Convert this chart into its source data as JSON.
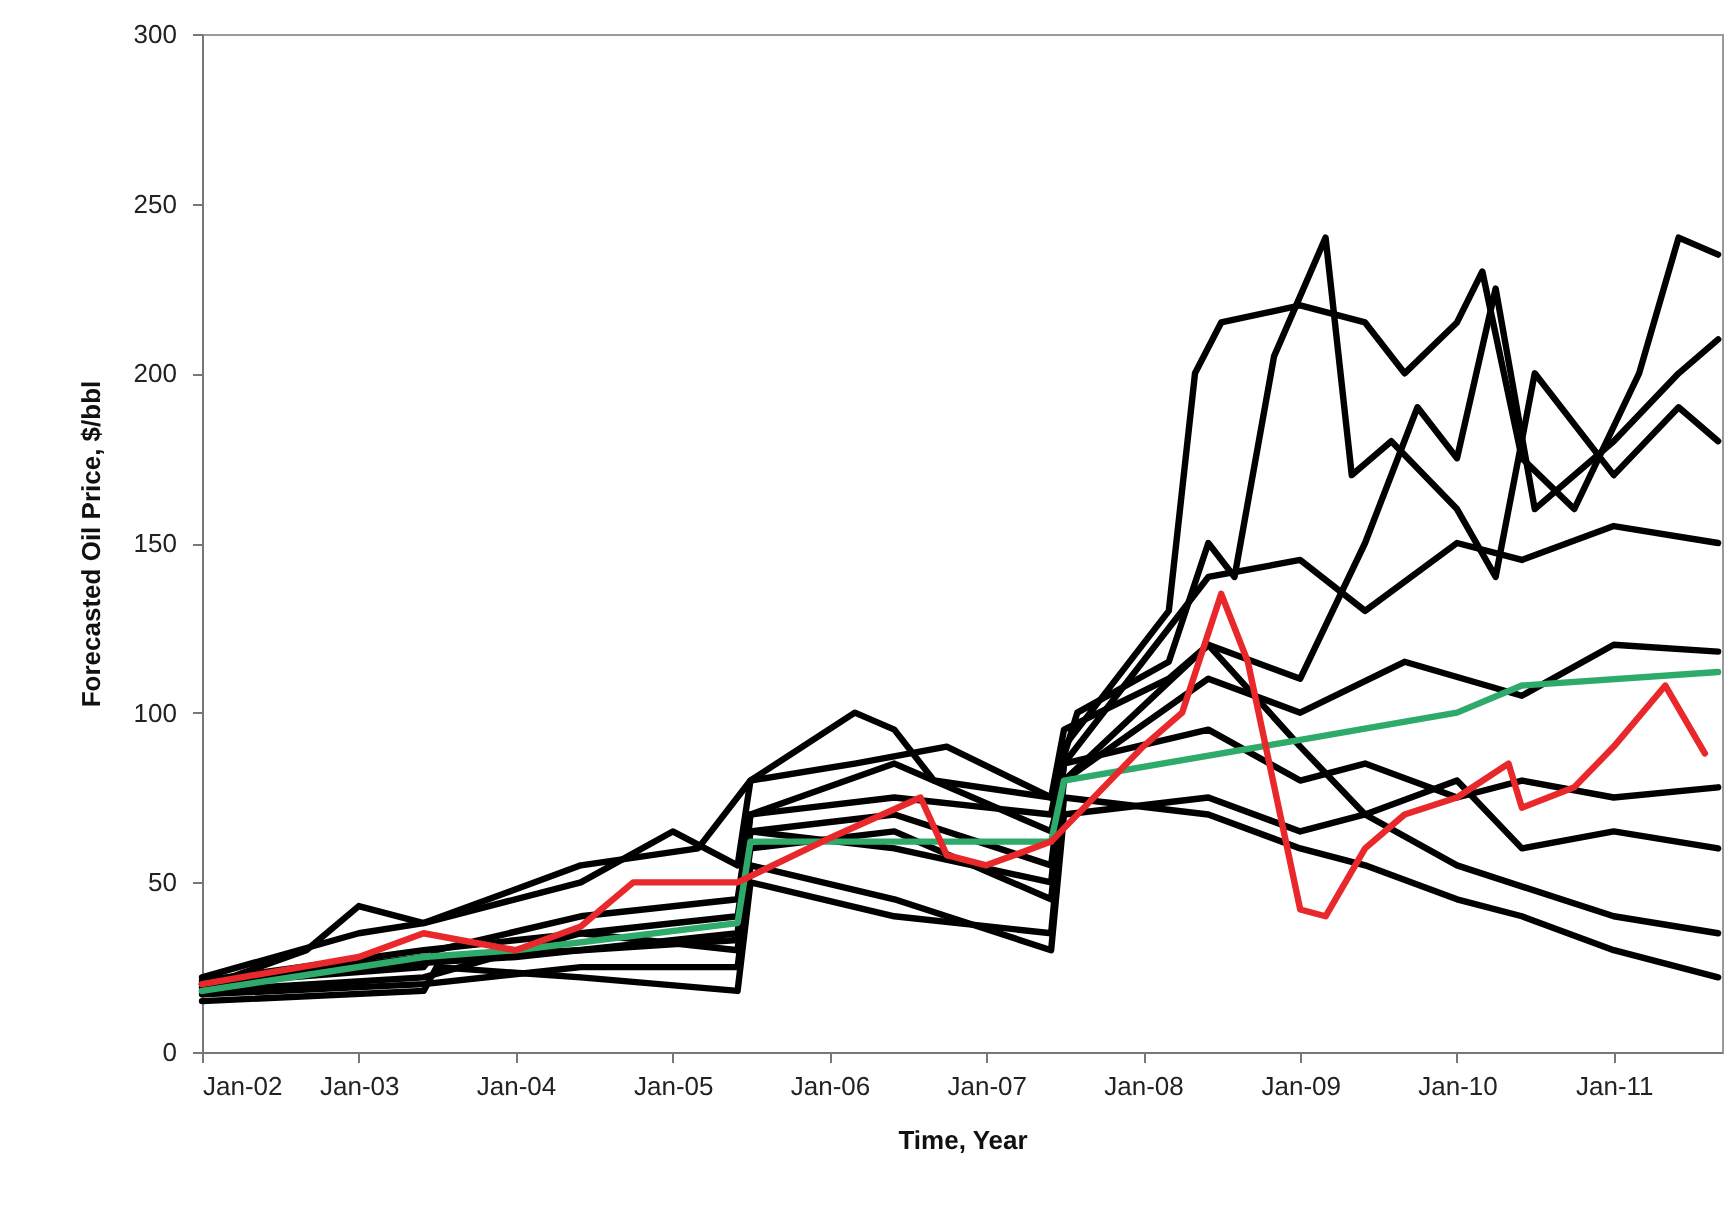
{
  "chart_data": {
    "type": "line",
    "xlabel": "Time, Year",
    "ylabel": "Forecasted Oil Price, $/bbl",
    "xlim": [
      "2002-01-01",
      "2011-09-10"
    ],
    "xticks": [
      {
        "value": "2002-01",
        "label": "Jan-02"
      },
      {
        "value": "2003-01",
        "label": "Jan-03"
      },
      {
        "value": "2004-01",
        "label": "Jan-04"
      },
      {
        "value": "2005-01",
        "label": "Jan-05"
      },
      {
        "value": "2006-01",
        "label": "Jan-06"
      },
      {
        "value": "2007-01",
        "label": "Jan-07"
      },
      {
        "value": "2008-01",
        "label": "Jan-08"
      },
      {
        "value": "2009-01",
        "label": "Jan-09"
      },
      {
        "value": "2010-01",
        "label": "Jan-10"
      },
      {
        "value": "2011-01",
        "label": "Jan-11"
      }
    ],
    "ylim": [
      0,
      300
    ],
    "yticks": [
      0,
      50,
      100,
      150,
      200,
      250,
      300
    ],
    "series": [
      {
        "color": "#000000",
        "x": [
          "2002-01",
          "2003-06",
          "2003-07",
          "2004-06",
          "2005-06",
          "2005-07",
          "2006-06",
          "2007-06",
          "2007-07",
          "2008-03",
          "2008-05",
          "2008-07",
          "2009-01",
          "2009-06",
          "2009-09",
          "2010-01",
          "2010-03",
          "2010-06",
          "2010-10",
          "2011-03",
          "2011-06",
          "2011-09"
        ],
        "values": [
          20,
          25,
          30,
          40,
          45,
          70,
          75,
          70,
          90,
          130,
          200,
          215,
          220,
          215,
          200,
          215,
          230,
          175,
          160,
          200,
          240,
          235
        ]
      },
      {
        "color": "#000000",
        "x": [
          "2002-01",
          "2003-01",
          "2003-06",
          "2004-06",
          "2005-03",
          "2005-07",
          "2006-03",
          "2006-10",
          "2007-06",
          "2007-08",
          "2008-03",
          "2008-06",
          "2008-08",
          "2008-11",
          "2009-03",
          "2009-05",
          "2009-08",
          "2010-01",
          "2010-04",
          "2010-07",
          "2011-01",
          "2011-06",
          "2011-09"
        ],
        "values": [
          22,
          35,
          38,
          55,
          60,
          80,
          85,
          90,
          75,
          100,
          115,
          150,
          140,
          205,
          240,
          170,
          180,
          160,
          140,
          200,
          170,
          190,
          180
        ]
      },
      {
        "color": "#000000",
        "x": [
          "2002-01",
          "2003-06",
          "2004-06",
          "2005-06",
          "2005-07",
          "2006-06",
          "2007-06",
          "2007-07",
          "2008-06",
          "2009-01",
          "2009-06",
          "2010-01",
          "2010-06",
          "2011-01",
          "2011-09"
        ],
        "values": [
          18,
          22,
          35,
          30,
          65,
          60,
          50,
          85,
          140,
          145,
          130,
          150,
          145,
          155,
          150
        ]
      },
      {
        "color": "#000000",
        "x": [
          "2002-01",
          "2003-01",
          "2004-01",
          "2005-06",
          "2005-07",
          "2006-06",
          "2007-06",
          "2007-07",
          "2008-06",
          "2009-01",
          "2009-09",
          "2010-06",
          "2011-01",
          "2011-09"
        ],
        "values": [
          20,
          25,
          28,
          35,
          70,
          85,
          65,
          80,
          110,
          100,
          115,
          105,
          120,
          118
        ]
      },
      {
        "color": "#000000",
        "x": [
          "2002-01",
          "2003-06",
          "2003-07",
          "2004-06",
          "2005-06",
          "2005-07",
          "2006-06",
          "2007-06",
          "2007-07",
          "2008-06",
          "2009-01",
          "2009-06",
          "2010-01",
          "2010-06",
          "2011-01",
          "2011-09"
        ],
        "values": [
          15,
          18,
          25,
          22,
          18,
          50,
          40,
          35,
          75,
          70,
          60,
          55,
          45,
          40,
          30,
          22
        ]
      },
      {
        "color": "#000000",
        "x": [
          "2002-01",
          "2003-06",
          "2004-06",
          "2005-06",
          "2005-07",
          "2006-06",
          "2007-06",
          "2007-07",
          "2008-06",
          "2009-01",
          "2009-06",
          "2010-01",
          "2011-01",
          "2011-09"
        ],
        "values": [
          17,
          20,
          25,
          25,
          55,
          45,
          30,
          70,
          75,
          65,
          70,
          55,
          40,
          35
        ]
      },
      {
        "color": "#000000",
        "x": [
          "2002-01",
          "2003-06",
          "2004-06",
          "2005-06",
          "2005-07",
          "2006-06",
          "2007-06",
          "2007-07",
          "2008-06",
          "2009-01",
          "2009-06",
          "2010-01",
          "2010-06",
          "2011-01",
          "2011-09"
        ],
        "values": [
          21,
          30,
          35,
          40,
          65,
          70,
          55,
          85,
          95,
          80,
          85,
          75,
          80,
          75,
          78
        ]
      },
      {
        "color": "#000000",
        "x": [
          "2002-01",
          "2002-09",
          "2003-01",
          "2003-06",
          "2004-06",
          "2005-01",
          "2005-06",
          "2005-07",
          "2006-03",
          "2006-06",
          "2006-09",
          "2007-06",
          "2007-07",
          "2008-03",
          "2008-06",
          "2009-01",
          "2009-06",
          "2010-01",
          "2010-06",
          "2011-01",
          "2011-09"
        ],
        "values": [
          19,
          30,
          43,
          38,
          50,
          65,
          55,
          80,
          100,
          95,
          80,
          75,
          95,
          110,
          120,
          90,
          70,
          80,
          60,
          65,
          60
        ]
      },
      {
        "color": "#000000",
        "x": [
          "2002-01",
          "2003-06",
          "2004-06",
          "2005-06",
          "2005-07",
          "2006-06",
          "2007-06",
          "2007-07",
          "2008-06",
          "2009-01",
          "2009-06",
          "2009-10",
          "2010-01",
          "2010-04",
          "2010-07",
          "2011-01",
          "2011-06",
          "2011-09"
        ],
        "values": [
          20,
          28,
          30,
          33,
          60,
          65,
          45,
          80,
          120,
          110,
          150,
          190,
          175,
          225,
          160,
          180,
          200,
          210
        ]
      },
      {
        "color": "#2eab6b",
        "x": [
          "2002-01",
          "2003-06",
          "2004-01",
          "2005-06",
          "2005-07",
          "2007-06",
          "2007-07",
          "2009-01",
          "2010-01",
          "2010-06",
          "2011-09"
        ],
        "values": [
          18,
          28,
          30,
          38,
          62,
          62,
          80,
          92,
          100,
          108,
          112
        ]
      },
      {
        "color": "#e8282b",
        "x": [
          "2002-01",
          "2003-01",
          "2003-06",
          "2004-01",
          "2004-06",
          "2004-10",
          "2005-06",
          "2006-01",
          "2006-08",
          "2006-10",
          "2007-01",
          "2007-06",
          "2008-01",
          "2008-04",
          "2008-07",
          "2008-09",
          "2009-01",
          "2009-03",
          "2009-06",
          "2009-09",
          "2010-01",
          "2010-05",
          "2010-06",
          "2010-10",
          "2011-01",
          "2011-05",
          "2011-08"
        ],
        "values": [
          20,
          28,
          35,
          30,
          37,
          50,
          50,
          63,
          75,
          58,
          55,
          62,
          90,
          100,
          135,
          115,
          42,
          40,
          60,
          70,
          75,
          85,
          72,
          78,
          90,
          108,
          88
        ]
      }
    ]
  }
}
